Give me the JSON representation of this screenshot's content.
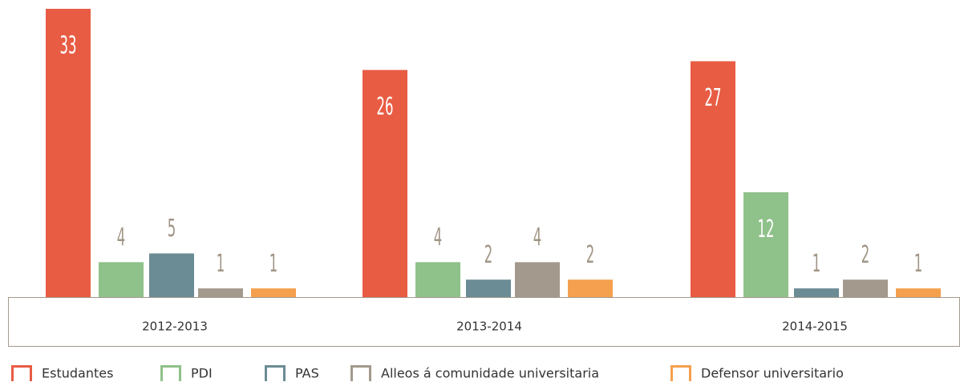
{
  "chart_data": {
    "type": "bar",
    "categories": [
      "2012-2013",
      "2013-2014",
      "2014-2015"
    ],
    "series": [
      {
        "name": "Estudantes",
        "color": "#e85c44",
        "values": [
          33,
          26,
          27
        ]
      },
      {
        "name": "PDI",
        "color": "#8fc18a",
        "values": [
          4,
          4,
          12
        ]
      },
      {
        "name": "PAS",
        "color": "#6b8c94",
        "values": [
          5,
          2,
          1
        ]
      },
      {
        "name": "Alleos á comunidade universitaria",
        "color": "#a39a8d",
        "values": [
          1,
          4,
          2
        ]
      },
      {
        "name": "Defensor universitario",
        "color": "#f5a04e",
        "values": [
          1,
          2,
          1
        ]
      }
    ]
  }
}
